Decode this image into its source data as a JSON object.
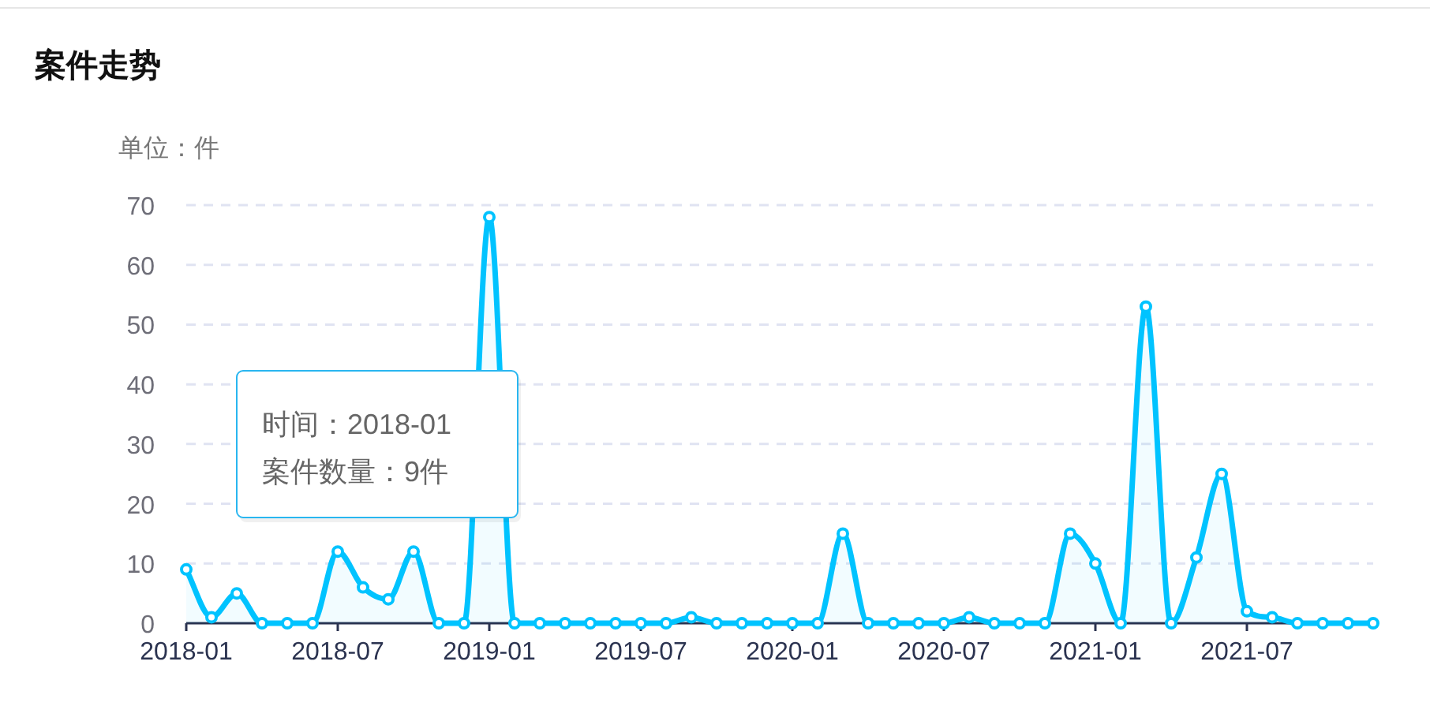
{
  "chart_data": {
    "type": "area",
    "title": "案件走势",
    "ylabel": "单位：件",
    "x": [
      "2018-01",
      "2018-02",
      "2018-03",
      "2018-04",
      "2018-05",
      "2018-06",
      "2018-07",
      "2018-08",
      "2018-09",
      "2018-10",
      "2018-11",
      "2018-12",
      "2019-01",
      "2019-02",
      "2019-03",
      "2019-04",
      "2019-05",
      "2019-06",
      "2019-07",
      "2019-08",
      "2019-09",
      "2019-10",
      "2019-11",
      "2019-12",
      "2020-01",
      "2020-02",
      "2020-03",
      "2020-04",
      "2020-05",
      "2020-06",
      "2020-07",
      "2020-08",
      "2020-09",
      "2020-10",
      "2020-11",
      "2020-12",
      "2021-01",
      "2021-02",
      "2021-03",
      "2021-04",
      "2021-05",
      "2021-06",
      "2021-07",
      "2021-08",
      "2021-09",
      "2021-10",
      "2021-11",
      "2021-12"
    ],
    "series": [
      {
        "color": "#00c3ff",
        "values": [
          9,
          1,
          5,
          0,
          0,
          0,
          12,
          6,
          4,
          12,
          0,
          0,
          68,
          0,
          0,
          0,
          0,
          0,
          0,
          0,
          1,
          0,
          0,
          0,
          0,
          0,
          15,
          0,
          0,
          0,
          0,
          1,
          0,
          0,
          0,
          15,
          10,
          0,
          53,
          0,
          11,
          25,
          2,
          1,
          0,
          0,
          0,
          0
        ]
      }
    ],
    "xlim": [
      "2018-01",
      "2021-12"
    ],
    "xticks": [
      "2018-01",
      "2018-07",
      "2019-01",
      "2019-07",
      "2020-01",
      "2020-07",
      "2021-01",
      "2021-07"
    ],
    "ylim": [
      0,
      70
    ],
    "yticks": [
      0,
      10,
      20,
      30,
      40,
      50,
      60,
      70
    ],
    "grid": "y",
    "marker": "circle",
    "line_style": "solid",
    "annotations": [
      "时间：2018-01\n案件数量：9件"
    ]
  }
}
